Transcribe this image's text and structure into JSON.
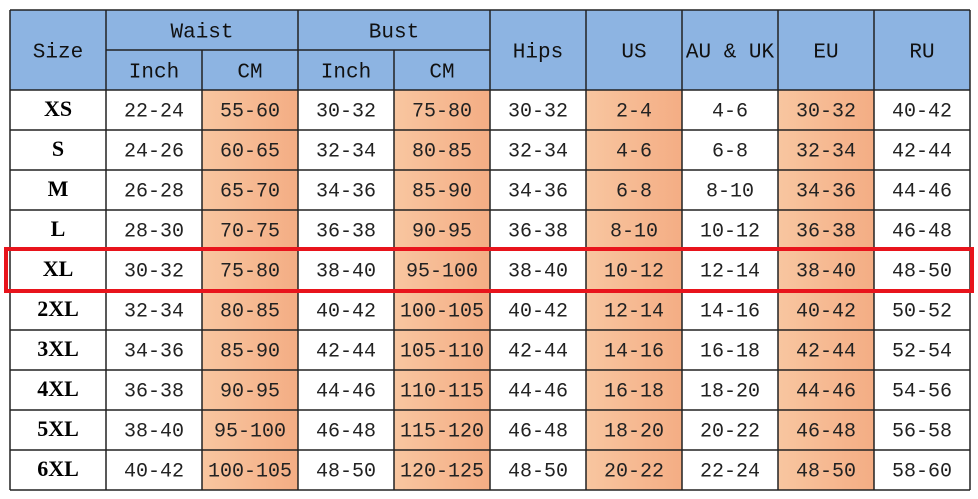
{
  "header": {
    "size": "Size",
    "waist": "Waist",
    "bust": "Bust",
    "hips": "Hips",
    "us": "US",
    "au_uk": "AU & UK",
    "eu": "EU",
    "ru": "RU",
    "waist_inch": "Inch",
    "waist_cm": "CM",
    "bust_inch": "Inch",
    "bust_cm": "CM"
  },
  "table": {
    "rows": [
      [
        "XS",
        "22-24",
        "55-60",
        "30-32",
        "75-80",
        "30-32",
        "2-4",
        "4-6",
        "30-32",
        "40-42"
      ],
      [
        "S",
        "24-26",
        "60-65",
        "32-34",
        "80-85",
        "32-34",
        "4-6",
        "6-8",
        "32-34",
        "42-44"
      ],
      [
        "M",
        "26-28",
        "65-70",
        "34-36",
        "85-90",
        "34-36",
        "6-8",
        "8-10",
        "34-36",
        "44-46"
      ],
      [
        "L",
        "28-30",
        "70-75",
        "36-38",
        "90-95",
        "36-38",
        "8-10",
        "10-12",
        "36-38",
        "46-48"
      ],
      [
        "XL",
        "30-32",
        "75-80",
        "38-40",
        "95-100",
        "38-40",
        "10-12",
        "12-14",
        "38-40",
        "48-50"
      ],
      [
        "2XL",
        "32-34",
        "80-85",
        "40-42",
        "100-105",
        "40-42",
        "12-14",
        "14-16",
        "40-42",
        "50-52"
      ],
      [
        "3XL",
        "34-36",
        "85-90",
        "42-44",
        "105-110",
        "42-44",
        "14-16",
        "16-18",
        "42-44",
        "52-54"
      ],
      [
        "4XL",
        "36-38",
        "90-95",
        "44-46",
        "110-115",
        "44-46",
        "16-18",
        "18-20",
        "44-46",
        "54-56"
      ],
      [
        "5XL",
        "38-40",
        "95-100",
        "46-48",
        "115-120",
        "46-48",
        "18-20",
        "20-22",
        "46-48",
        "56-58"
      ],
      [
        "6XL",
        "40-42",
        "100-105",
        "48-50",
        "120-125",
        "48-50",
        "20-22",
        "22-24",
        "48-50",
        "58-60"
      ]
    ]
  }
}
